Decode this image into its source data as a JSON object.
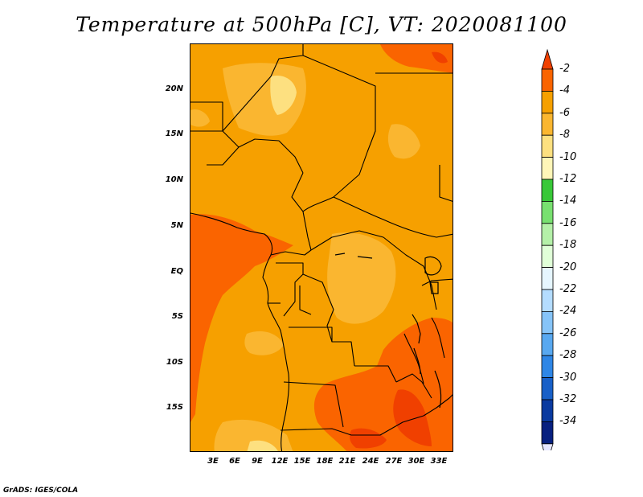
{
  "title": "Temperature at 500hPa [C], VT: 2020081100",
  "credit": "GrADS: IGES/COLA",
  "map": {
    "lon_range": [
      0,
      34
    ],
    "lat_range": [
      -20,
      25
    ],
    "lat_labels": [
      "20N",
      "15N",
      "10N",
      "5N",
      "EQ",
      "5S",
      "10S",
      "15S"
    ],
    "lon_labels": [
      "3E",
      "6E",
      "9E",
      "12E",
      "15E",
      "18E",
      "21E",
      "24E",
      "27E",
      "30E",
      "33E"
    ]
  },
  "colorbar": {
    "labels": [
      "-2",
      "-4",
      "-6",
      "-8",
      "-10",
      "-12",
      "-14",
      "-16",
      "-18",
      "-20",
      "-22",
      "-24",
      "-26",
      "-28",
      "-30",
      "-32",
      "-34"
    ],
    "colors": [
      "#f04000",
      "#fa6400",
      "#f6a000",
      "#fab630",
      "#fde080",
      "#fff6b8",
      "#38c838",
      "#78e070",
      "#b4f0a8",
      "#e0ffd8",
      "#e6f6ff",
      "#b4dcff",
      "#86c4f8",
      "#58a8f0",
      "#2e86e6",
      "#1860c8",
      "#0a3aa0",
      "#082080",
      "#e6e6ff"
    ]
  }
}
